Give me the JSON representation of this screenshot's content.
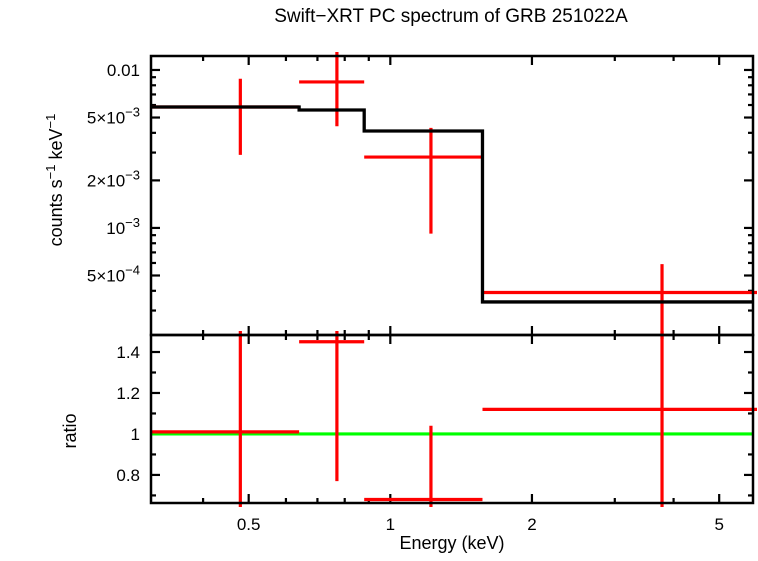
{
  "title": "Swift−XRT PC spectrum of GRB 251022A",
  "colors": {
    "data": "#ff0000",
    "model": "#000000",
    "reference_line": "#00ff00",
    "axes": "#000000",
    "background": "#ffffff"
  },
  "chart_data": {
    "type": "spectrum-with-ratio",
    "x_axis": {
      "label": "Energy (keV)",
      "scale": "log",
      "unit": "keV",
      "range": [
        0.31,
        5.9
      ],
      "major_ticks": [
        {
          "value": 0.5,
          "label": "0.5"
        },
        {
          "value": 1,
          "label": "1"
        },
        {
          "value": 2,
          "label": "2"
        },
        {
          "value": 5,
          "label": "5"
        }
      ],
      "minor_ticks": [
        0.4,
        0.6,
        0.7,
        0.8,
        0.9,
        3,
        4
      ]
    },
    "top_panel": {
      "ylabel_parts": [
        {
          "text": "counts s",
          "sup": false
        },
        {
          "text": "−1",
          "sup": true
        },
        {
          "text": " keV",
          "sup": false
        },
        {
          "text": "−1",
          "sup": true
        }
      ],
      "scale": "log",
      "range": [
        0.00021,
        0.01226
      ],
      "major_ticks": [
        {
          "value": 0.01,
          "main": "0.01",
          "sup": ""
        },
        {
          "value": 0.005,
          "main": "5×10",
          "sup": "−3"
        },
        {
          "value": 0.002,
          "main": "2×10",
          "sup": "−3"
        },
        {
          "value": 0.001,
          "main": "10",
          "sup": "−3"
        },
        {
          "value": 0.0005,
          "main": "5×10",
          "sup": "−4"
        }
      ],
      "minor_ticks": [
        0.009,
        0.008,
        0.007,
        0.006,
        0.004,
        0.003,
        0.0009,
        0.0008,
        0.0007,
        0.0006,
        0.0004,
        0.0003
      ],
      "model_step_bins": [
        {
          "e_lo": 0.31,
          "e_hi": 0.64,
          "rate": 0.00583
        },
        {
          "e_lo": 0.64,
          "e_hi": 0.88,
          "rate": 0.00558
        },
        {
          "e_lo": 0.88,
          "e_hi": 1.57,
          "rate": 0.00411
        },
        {
          "e_lo": 1.57,
          "e_hi": 5.9,
          "rate": 0.00034
        }
      ],
      "data_points": [
        {
          "e": 0.48,
          "e_lo": 0.31,
          "e_hi": 0.64,
          "rate": 0.00583,
          "err_hi": 0.0088,
          "err_lo": 0.0029
        },
        {
          "e": 0.77,
          "e_lo": 0.64,
          "e_hi": 0.88,
          "rate": 0.0084,
          "err_hi": null,
          "err_lo": 0.0044
        },
        {
          "e": 1.22,
          "e_lo": 0.88,
          "e_hi": 1.57,
          "rate": 0.00281,
          "err_hi": 0.0043,
          "err_lo": 0.00092
        },
        {
          "e": 3.78,
          "e_lo": 1.57,
          "e_hi": 5.9,
          "rate": 0.00039,
          "err_hi": 0.00059,
          "err_lo": null
        }
      ]
    },
    "bottom_panel": {
      "ylabel": "ratio",
      "scale": "linear",
      "range": [
        0.663,
        1.483
      ],
      "reference_value": 1,
      "major_ticks": [
        {
          "value": 1.4,
          "label": "1.4"
        },
        {
          "value": 1.2,
          "label": "1.2"
        },
        {
          "value": 1,
          "label": "1"
        },
        {
          "value": 0.8,
          "label": "0.8"
        }
      ],
      "minor_ticks": [
        1.3,
        1.1,
        0.9,
        0.7
      ],
      "data_points": [
        {
          "e": 0.48,
          "e_lo": 0.31,
          "e_hi": 0.64,
          "ratio": 1.01,
          "err_hi": null,
          "err_lo": null
        },
        {
          "e": 0.77,
          "e_lo": 0.64,
          "e_hi": 0.88,
          "ratio": 1.45,
          "err_hi": null,
          "err_lo": 0.77
        },
        {
          "e": 1.22,
          "e_lo": 0.88,
          "e_hi": 1.57,
          "ratio": 0.68,
          "err_hi": 1.04,
          "err_lo": null
        },
        {
          "e": 3.78,
          "e_lo": 1.57,
          "e_hi": 5.9,
          "ratio": 1.12,
          "err_hi": null,
          "err_lo": null
        }
      ]
    }
  }
}
